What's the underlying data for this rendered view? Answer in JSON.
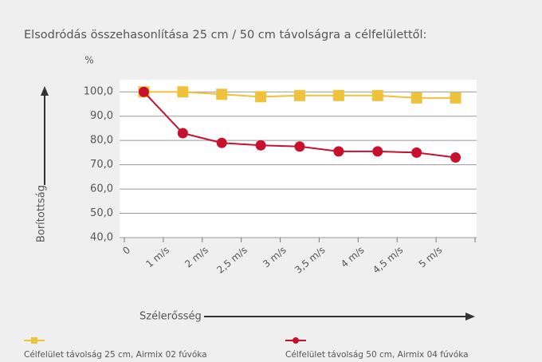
{
  "chart_data": {
    "type": "line",
    "title": "Elsodródás összehasonlítása 25 cm / 50 cm távolságra a célfelülettől:",
    "y_unit": "%",
    "y_label": "Borítottság",
    "x_label": "Szélerősség",
    "categories": [
      "0",
      "1 m/s",
      "2 m/s",
      "2,5 m/s",
      "3 m/s",
      "3,5 m/s",
      "4 m/s",
      "4,5 m/s",
      "5 m/s"
    ],
    "series": [
      {
        "name": "Célfelület távolság 25 cm, Airmix 02 fúvóka",
        "color": "#efc23c",
        "marker": "square",
        "values": [
          100,
          100,
          99,
          98,
          98.5,
          98.5,
          98.5,
          97.5,
          97.5
        ]
      },
      {
        "name": "Célfelület távolság 50 cm, Airmix 04 fúvóka",
        "color": "#c8102e",
        "marker": "circle",
        "values": [
          100,
          83,
          79,
          78,
          77.5,
          75.5,
          75.5,
          75,
          73
        ]
      }
    ],
    "ylim": [
      40,
      105
    ],
    "yticks": [
      {
        "value": 40,
        "label": "40,0"
      },
      {
        "value": 50,
        "label": "50,0"
      },
      {
        "value": 60,
        "label": "60,0"
      },
      {
        "value": 70,
        "label": "70,0"
      },
      {
        "value": 80,
        "label": "80,0"
      },
      {
        "value": 90,
        "label": "90,0"
      },
      {
        "value": 100,
        "label": "100,0"
      }
    ],
    "grid": true,
    "legend": "bottom"
  }
}
